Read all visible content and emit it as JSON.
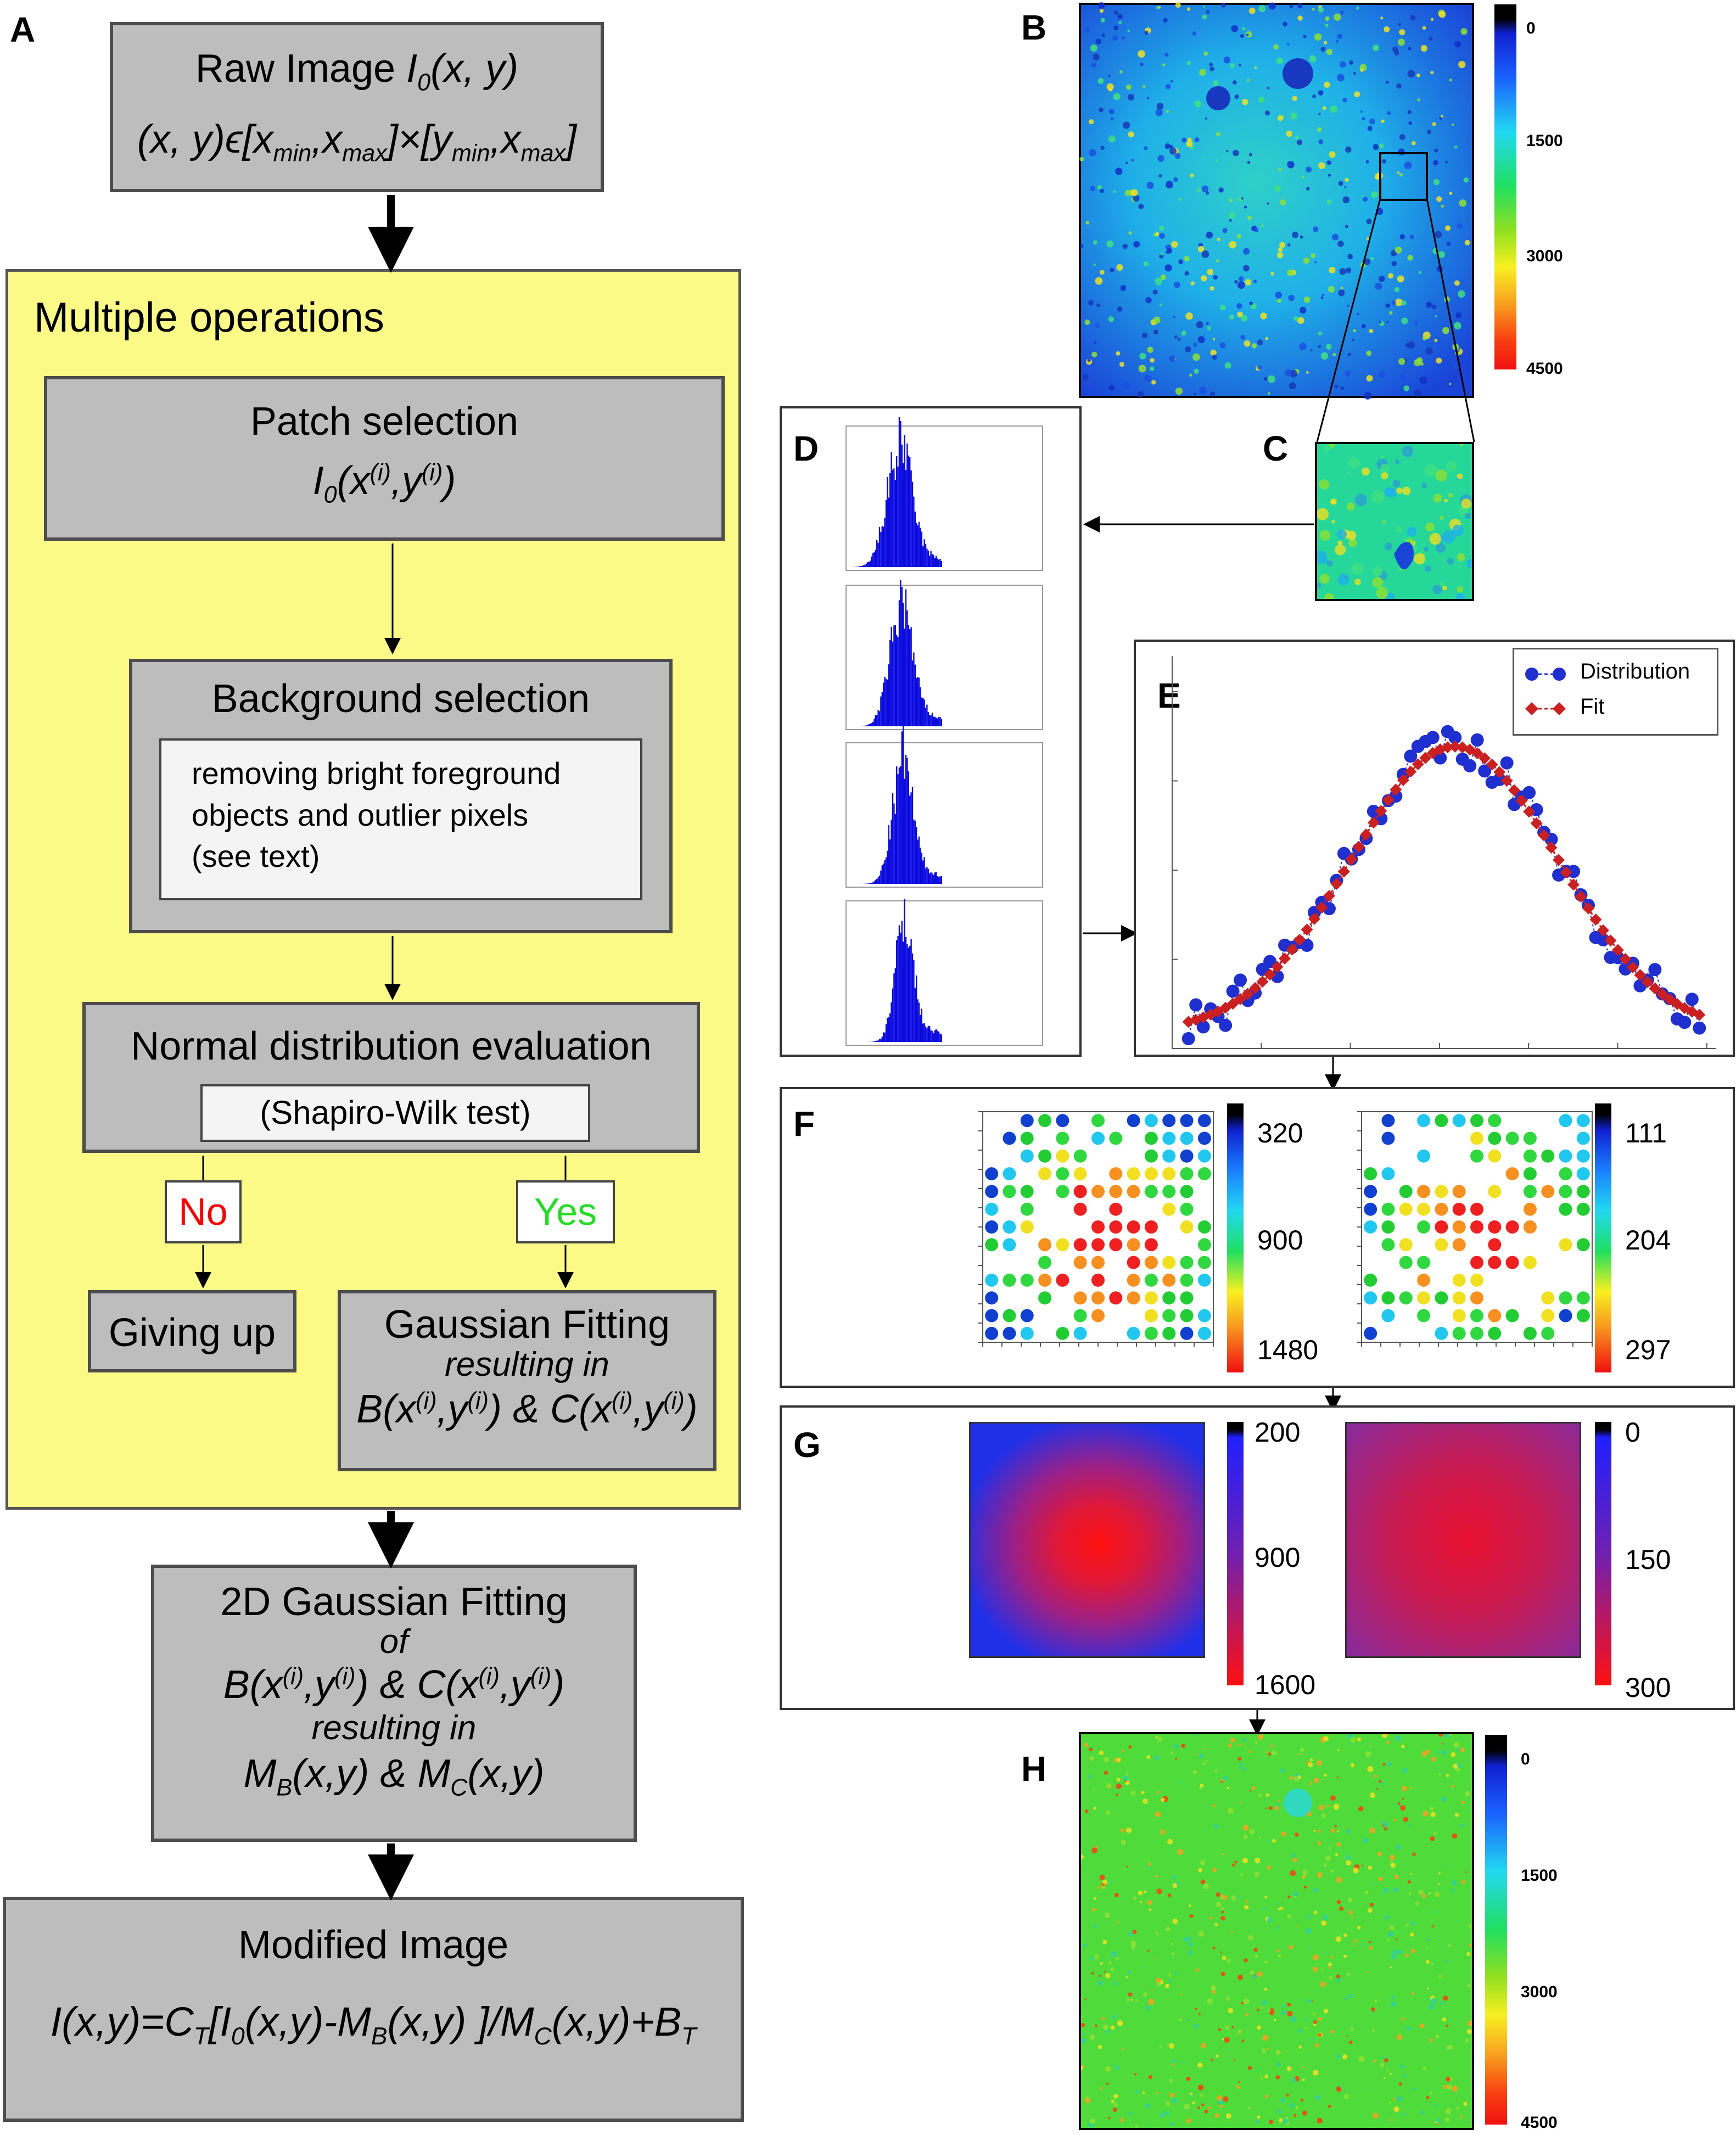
{
  "panels": {
    "A": "A",
    "B": "B",
    "C": "C",
    "D": "D",
    "E": "E",
    "F": "F",
    "G": "G",
    "H": "H"
  },
  "flow": {
    "raw_title": "Raw Image",
    "raw_symbol": "I",
    "raw_symbol_sub": "0",
    "raw_args": "(x, y)",
    "raw_domain_prefix": "(x, y)ϵ[x",
    "raw_sub_min": "min",
    "raw_sep": ",x",
    "raw_sub_max": "max",
    "raw_mid": "]×[y",
    "raw_close": "]",
    "multiple_ops": "Multiple operations",
    "patch_title": "Patch selection",
    "patch_formula": "I",
    "patch_sub": "0",
    "patch_open": "(x",
    "patch_sup": "(i)",
    "patch_mid": ",y",
    "patch_close": ")",
    "bg_title": "Background selection",
    "bg_text_1": "removing bright foreground",
    "bg_text_2": "objects and outlier pixels",
    "bg_text_3": "(see text)",
    "normal_title": "Normal distribution evaluation",
    "normal_test": "(Shapiro-Wilk test)",
    "no": "No",
    "yes": "Yes",
    "giving_up": "Giving up",
    "gauss_title": "Gaussian Fitting",
    "gauss_resulting": "resulting in",
    "gauss_formula_b": "B(x",
    "gauss_formula_mid": ",y",
    "gauss_formula_and": ") & C(x",
    "gauss_formula_close": ")",
    "g2d_title": "2D Gaussian Fitting",
    "g2d_of": "of",
    "g2d_resulting": "resulting in",
    "g2d_m": "M",
    "g2d_sub_b": "B",
    "g2d_args": "(x,y) & M",
    "g2d_sub_c": "C",
    "g2d_args2": "(x,y)",
    "mod_title": "Modified Image",
    "mod_formula_1": "I(x,y)=C",
    "mod_sub_t": "T",
    "mod_formula_2": "[I",
    "mod_sub_0": "0",
    "mod_formula_3": "(x,y)-M",
    "mod_sub_b": "B",
    "mod_formula_4": "(x,y) ]/M",
    "mod_sub_c": "C",
    "mod_formula_5": "(x,y)+B",
    "mod_sub_t2": "T"
  },
  "colorbars": {
    "B": [
      "0",
      "1500",
      "3000",
      "4500"
    ],
    "H": [
      "0",
      "1500",
      "3000",
      "4500"
    ],
    "F_left": [
      "320",
      "900",
      "1480"
    ],
    "F_right": [
      "111",
      "204",
      "297"
    ],
    "G_left": [
      "200",
      "900",
      "1600"
    ],
    "G_right": [
      "0",
      "150",
      "300"
    ]
  },
  "legend": {
    "distribution": "Distribution",
    "fit": "Fit"
  },
  "colors": {
    "box_gray": "#bdbdbd",
    "yellow": "#fbfa86",
    "no_red": "#ff0000",
    "yes_green": "#22dd22",
    "distribution_blue": "#1f2fd0",
    "fit_red": "#cc2020"
  },
  "chart_data": {
    "type": "scatter",
    "series": [
      {
        "name": "Distribution",
        "values": []
      },
      {
        "name": "Fit",
        "values": []
      }
    ],
    "legend": "top-right"
  }
}
